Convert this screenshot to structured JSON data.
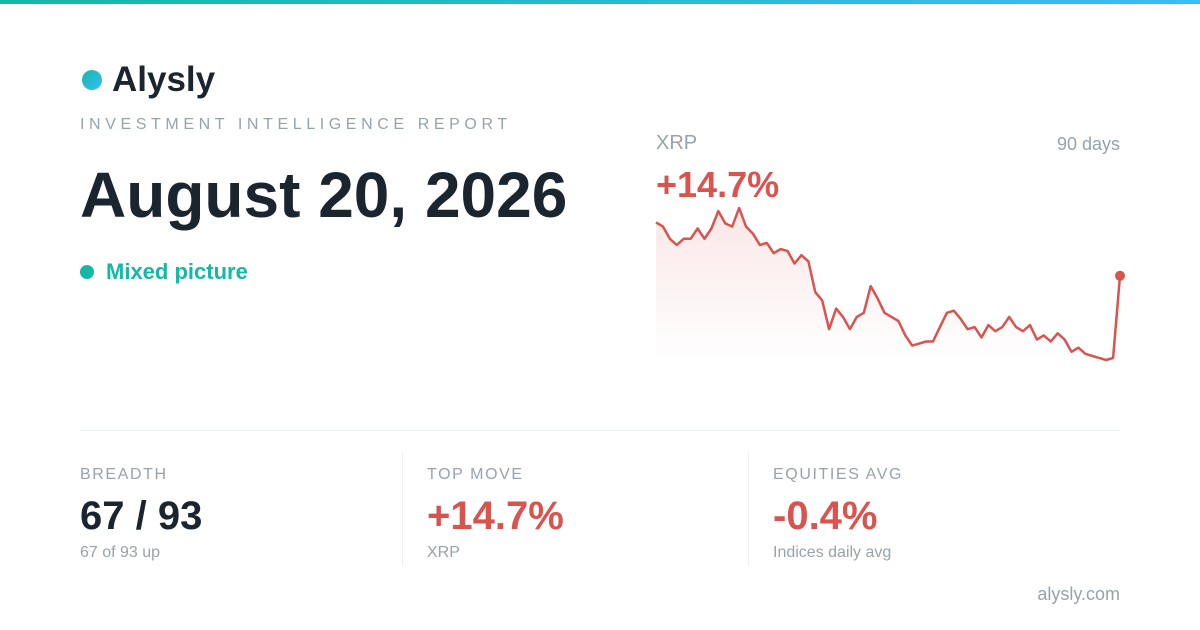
{
  "brand": "Alysly",
  "kicker": "INVESTMENT INTELLIGENCE REPORT",
  "date": "August 20, 2026",
  "status": "Mixed picture",
  "sparkline": {
    "type": "line",
    "label": "XRP",
    "period": "90 days",
    "change": "+14.7%",
    "color": "#d9534f",
    "values": [
      136,
      132,
      120,
      114,
      120,
      120,
      130,
      120,
      130,
      147,
      135,
      132,
      150,
      132,
      125,
      114,
      116,
      106,
      110,
      108,
      96,
      104,
      98,
      68,
      60,
      32,
      52,
      44,
      32,
      44,
      48,
      74,
      62,
      48,
      44,
      40,
      26,
      16,
      18,
      20,
      20,
      34,
      48,
      50,
      42,
      32,
      34,
      24,
      36,
      30,
      34,
      44,
      34,
      30,
      36,
      22,
      26,
      20,
      28,
      22,
      10,
      14,
      8,
      6,
      4,
      2,
      4,
      84
    ]
  },
  "stats": [
    {
      "label": "BREADTH",
      "value": "67 / 93",
      "note": "67 of 93 up"
    },
    {
      "label": "TOP MOVE",
      "value": "+14.7%",
      "note": "XRP"
    },
    {
      "label": "EQUITIES AVG",
      "value": "-0.4%",
      "note": "Indices daily avg"
    }
  ],
  "footer": "alysly.com"
}
